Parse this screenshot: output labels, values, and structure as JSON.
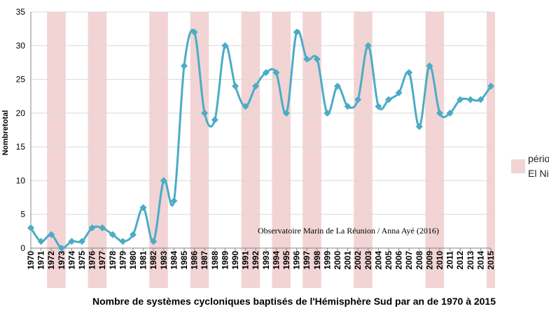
{
  "chart_data": {
    "type": "line",
    "title": "Nombre de systèmes cycloniques baptisés de l'Hémisphère  Sud par an de 1970 à 2015",
    "xlabel": "",
    "ylabel": "Nombretotal",
    "ylim": [
      0,
      35
    ],
    "yticks": [
      "0",
      "5",
      "10",
      "15",
      "20",
      "25",
      "30",
      "35"
    ],
    "grid": true,
    "categories": [
      "1970",
      "1971",
      "1972",
      "1973",
      "1974",
      "1975",
      "1976",
      "1977",
      "1978",
      "1979",
      "1980",
      "1981",
      "1982",
      "1983",
      "1984",
      "1985",
      "1986",
      "1987",
      "1988",
      "1989",
      "1990",
      "1991",
      "1992",
      "1993",
      "1994",
      "1995",
      "1996",
      "1997",
      "1998",
      "1999",
      "2000",
      "2001",
      "2002",
      "2003",
      "2004",
      "2005",
      "2006",
      "2007",
      "2008",
      "2009",
      "2010",
      "2011",
      "2012",
      "2013",
      "2014",
      "2015"
    ],
    "series": [
      {
        "values": [
          3,
          1,
          2,
          0,
          1,
          1,
          3,
          3,
          2,
          1,
          2,
          6,
          1,
          10,
          7,
          27,
          32,
          20,
          19,
          30,
          24,
          21,
          24,
          26,
          26,
          20,
          32,
          28,
          28,
          20,
          24,
          21,
          22,
          30,
          21,
          22,
          23,
          26,
          18,
          27,
          20,
          20,
          22,
          22,
          22,
          24
        ]
      }
    ],
    "el_nino_periods": [
      [
        "1972",
        "1973"
      ],
      [
        "1976",
        "1977"
      ],
      [
        "1982",
        "1983"
      ],
      [
        "1986",
        "1987"
      ],
      [
        "1991",
        "1992"
      ],
      [
        "1994",
        "1995"
      ],
      [
        "1997",
        "1998"
      ],
      [
        "2002",
        "2003"
      ],
      [
        "2009",
        "2010"
      ],
      [
        "2015",
        "2015"
      ]
    ],
    "legend": {
      "label_line1": "période",
      "label_line2": "El Nino",
      "position": "right"
    },
    "annotation": "Observatoire Marin de La Réunion / Anna Ayé (2016)",
    "colors": {
      "line": "#4bacc6",
      "band": "#f2d4d4",
      "grid": "#d9d9d9"
    }
  }
}
